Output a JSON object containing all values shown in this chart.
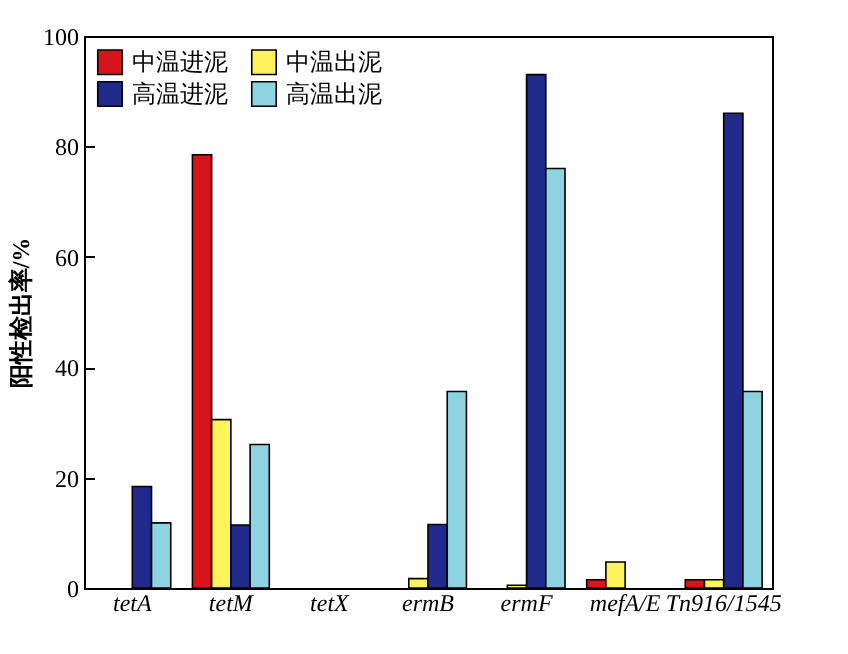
{
  "chart_data": {
    "type": "bar",
    "ylabel": "阳性检出率/%",
    "categories": [
      "tetA",
      "tetM",
      "tetX",
      "ermB",
      "ermF",
      "mefA/E",
      "Tn916/1545"
    ],
    "series": [
      {
        "name": "中温进泥",
        "color": "#d7141a",
        "values": [
          null,
          78.5,
          null,
          null,
          null,
          1.5,
          1.5
        ]
      },
      {
        "name": "中温出泥",
        "color": "#fff35c",
        "values": [
          null,
          30.5,
          null,
          1.7,
          0.5,
          4.7,
          1.5
        ]
      },
      {
        "name": "高温进泥",
        "color": "#1f2a8c",
        "values": [
          18.4,
          11.4,
          null,
          11.5,
          93,
          null,
          86
        ]
      },
      {
        "name": "高温出泥",
        "color": "#8ed3e0",
        "values": [
          11.8,
          26,
          null,
          35.6,
          76,
          null,
          35.6
        ]
      }
    ],
    "ylim": [
      0,
      100
    ],
    "yticks": [
      0,
      20,
      40,
      60,
      80,
      100
    ],
    "grid": false,
    "legend": "top left"
  }
}
